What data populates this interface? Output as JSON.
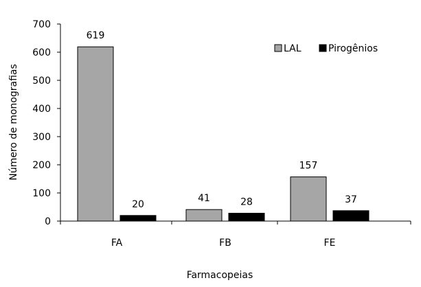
{
  "chart_data": {
    "type": "bar",
    "title": "",
    "xlabel": "Farmacopeias",
    "ylabel": "Número de monografias",
    "categories": [
      "FA",
      "FB",
      "FE"
    ],
    "series": [
      {
        "name": "LAL",
        "values": [
          619,
          41,
          157
        ],
        "color": "#a6a6a6"
      },
      {
        "name": "Pirogênios",
        "values": [
          20,
          28,
          37
        ],
        "color": "#000000"
      }
    ],
    "ylim": [
      0,
      700
    ],
    "yticks": [
      0,
      100,
      200,
      300,
      400,
      500,
      600,
      700
    ],
    "grid": false,
    "legend_position": "top-right"
  }
}
